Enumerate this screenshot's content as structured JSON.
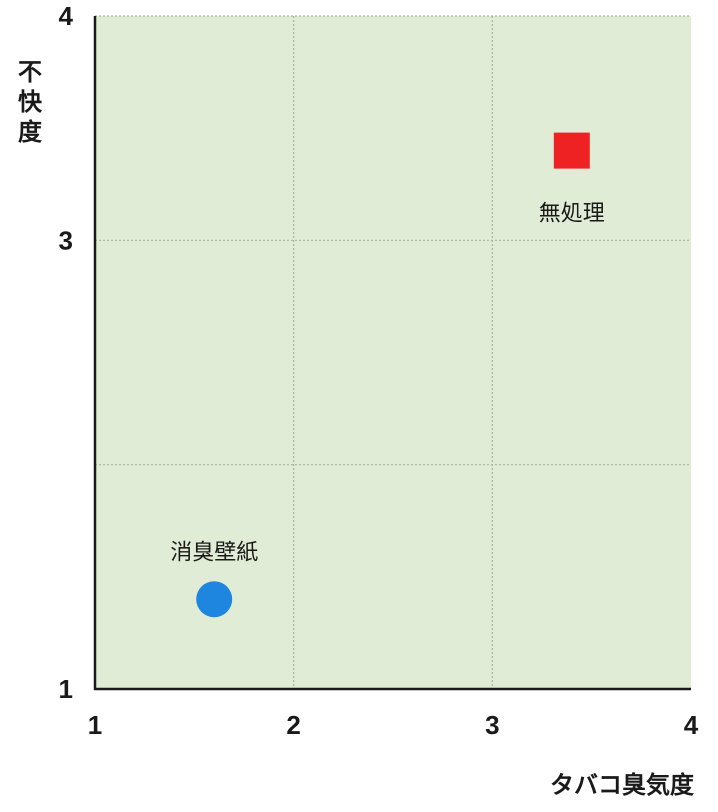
{
  "chart_data": {
    "type": "scatter",
    "title": "",
    "xlabel": "タバコ臭気度",
    "ylabel": "不快度",
    "xlim": [
      1,
      4
    ],
    "ylim": [
      1,
      4
    ],
    "x_ticks": [
      "1",
      "2",
      "3",
      "4"
    ],
    "y_ticks": [
      "1",
      "3",
      "4"
    ],
    "grid": true,
    "plot_background": "#e1ecd6",
    "points": [
      {
        "label": "消臭壁紙",
        "x": 1.6,
        "y": 1.4,
        "marker": "circle",
        "color": "#1f86e0"
      },
      {
        "label": "無処理",
        "x": 3.4,
        "y": 3.4,
        "marker": "square",
        "color": "#ee2222"
      }
    ]
  }
}
